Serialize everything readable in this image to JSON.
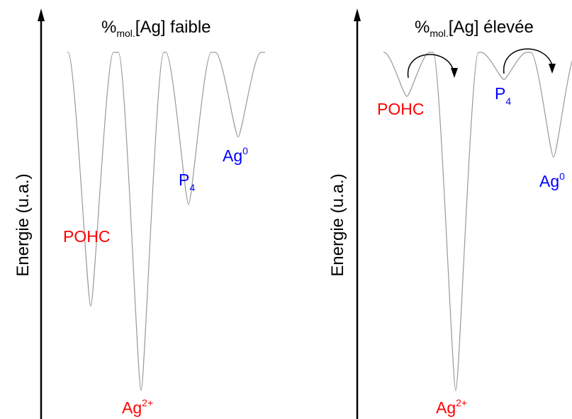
{
  "panels": [
    {
      "id": "left",
      "title": {
        "prefix": "%",
        "sub": "mol.",
        "rest": "[Ag] faible"
      },
      "y_axis_label": "Energie (u.a.)",
      "wells": [
        {
          "name": "POHC",
          "base": "POHC",
          "sup": "",
          "sub": "",
          "color": "#ff0000",
          "depth": 0.75
        },
        {
          "name": "Ag2+",
          "base": "Ag",
          "sup": "2+",
          "sub": "",
          "color": "#ff0000",
          "depth": 1.0
        },
        {
          "name": "P4",
          "base": "P",
          "sup": "",
          "sub": "4",
          "color": "#0000ff",
          "depth": 0.45
        },
        {
          "name": "Ag0",
          "base": "Ag",
          "sup": "0",
          "sub": "",
          "color": "#0000ff",
          "depth": 0.25
        }
      ]
    },
    {
      "id": "right",
      "title": {
        "prefix": "%",
        "sub": "mol.",
        "rest": "[Ag] élevée"
      },
      "y_axis_label": "Energie (u.a.)",
      "wells": [
        {
          "name": "POHC",
          "base": "POHC",
          "sup": "",
          "sub": "",
          "color": "#ff0000",
          "depth": 0.13
        },
        {
          "name": "Ag2+",
          "base": "Ag",
          "sup": "2+",
          "sub": "",
          "color": "#ff0000",
          "depth": 1.0
        },
        {
          "name": "P4",
          "base": "P",
          "sup": "",
          "sub": "4",
          "color": "#0000ff",
          "depth": 0.08
        },
        {
          "name": "Ag0",
          "base": "Ag",
          "sup": "0",
          "sub": "",
          "color": "#0000ff",
          "depth": 0.31
        }
      ],
      "transfers": [
        {
          "from": "POHC",
          "to": "Ag2+"
        },
        {
          "from": "P4",
          "to": "Ag0"
        }
      ]
    }
  ],
  "colors": {
    "curve": "#999999",
    "axis": "#000000"
  }
}
